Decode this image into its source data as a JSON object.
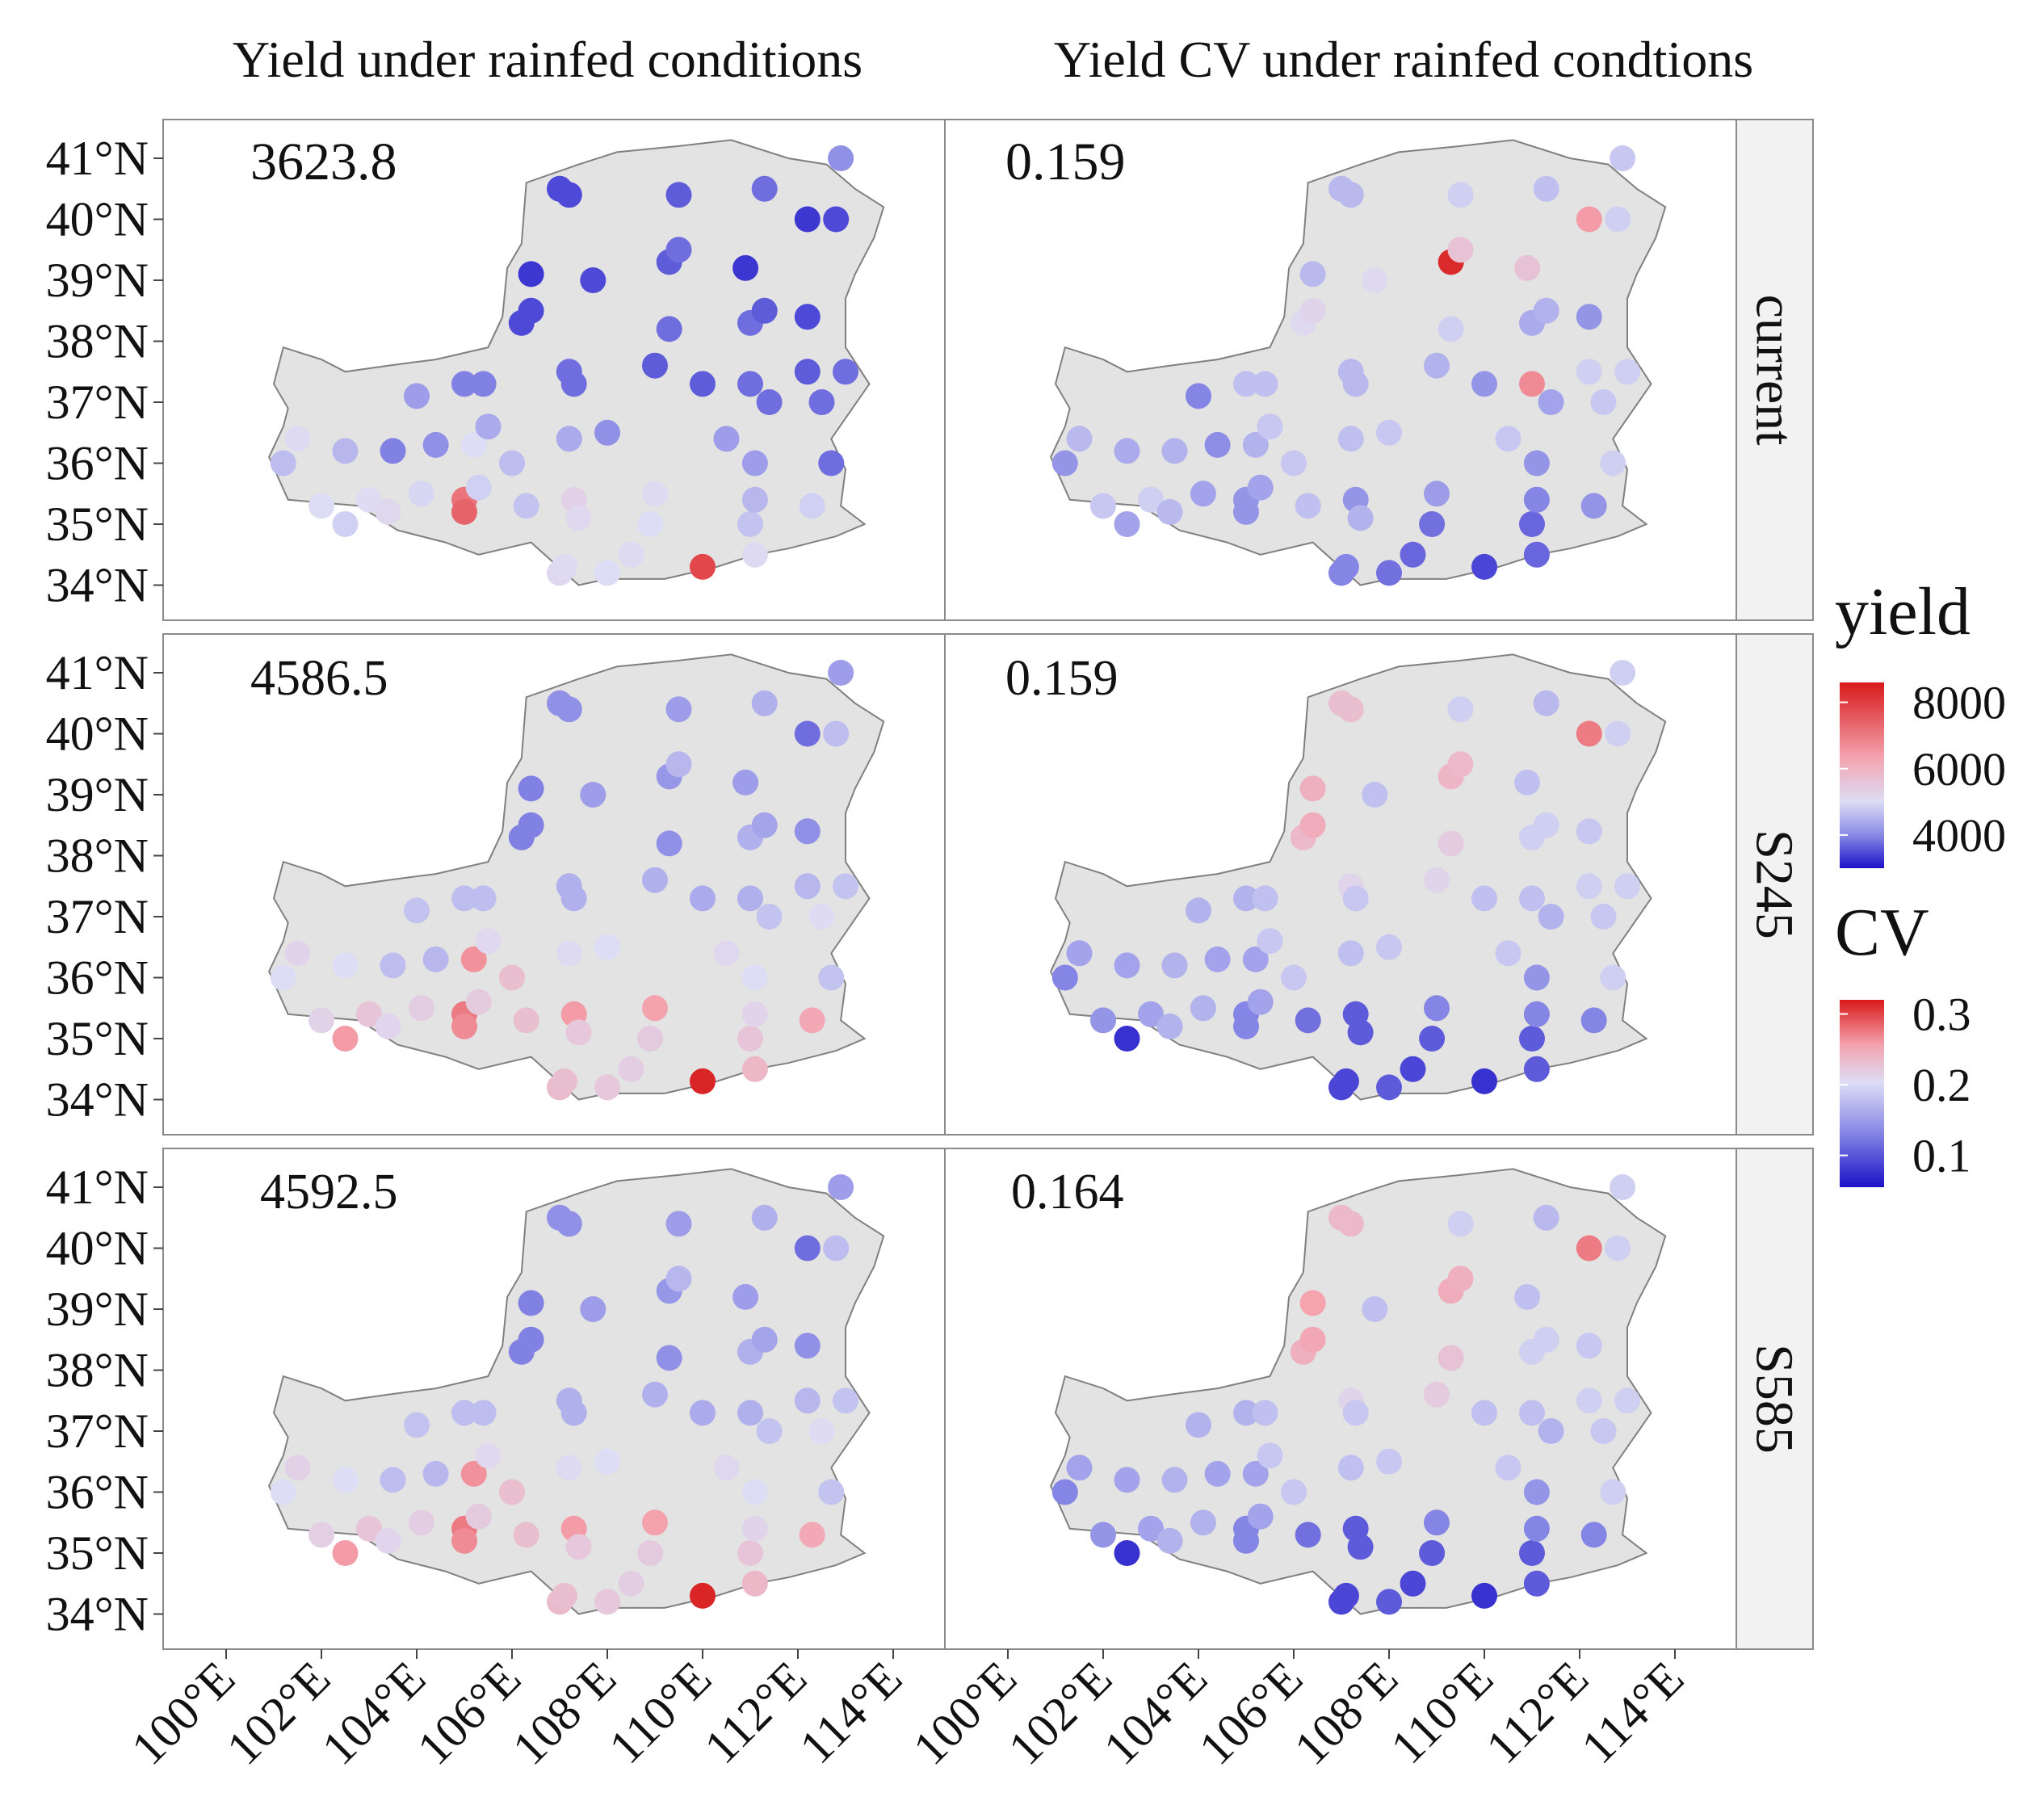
{
  "figure": {
    "col_titles": [
      "Yield under rainfed conditions",
      "Yield CV under rainfed condtions"
    ],
    "row_labels": [
      "current",
      "S245",
      "S585"
    ],
    "panel_values": [
      [
        "3623.8",
        "0.159"
      ],
      [
        "4586.5",
        "0.159"
      ],
      [
        "4592.5",
        "0.164"
      ]
    ],
    "lat_labels": [
      "41°N",
      "40°N",
      "39°N",
      "38°N",
      "37°N",
      "36°N",
      "35°N",
      "34°N"
    ],
    "lat_values": [
      41,
      40,
      39,
      38,
      37,
      36,
      35,
      34
    ],
    "lon_labels": [
      "100°E",
      "102°E",
      "104°E",
      "106°E",
      "108°E",
      "110°E",
      "112°E",
      "114°E"
    ],
    "lon_values": [
      100,
      102,
      104,
      106,
      108,
      110,
      112,
      114
    ],
    "legend": {
      "yield": {
        "title": "yield",
        "ticks": [
          "8000",
          "6000",
          "4000"
        ],
        "tick_values": [
          8000,
          6000,
          4000
        ],
        "min": 3000,
        "max": 8600
      },
      "cv": {
        "title": "CV",
        "ticks": [
          "0.3",
          "0.2",
          "0.1"
        ],
        "tick_values": [
          0.3,
          0.2,
          0.1
        ],
        "min": 0.055,
        "max": 0.32
      }
    },
    "colors": {
      "low": "#1a12c8",
      "mid": "#ddddf5",
      "high": "#d81a1a",
      "region_fill": "#e3e3e3",
      "region_stroke": "#808080",
      "strip_fill": "#f2f2f2"
    }
  },
  "map_data": {
    "region_outline": [
      [
        101.2,
        36.6
      ],
      [
        100.9,
        36.1
      ],
      [
        101.3,
        35.4
      ],
      [
        102.8,
        35.3
      ],
      [
        103.6,
        34.9
      ],
      [
        104.6,
        34.7
      ],
      [
        105.3,
        34.5
      ],
      [
        106.4,
        34.7
      ],
      [
        107.4,
        34.0
      ],
      [
        108.0,
        34.1
      ],
      [
        109.2,
        34.1
      ],
      [
        110.3,
        34.3
      ],
      [
        111.1,
        34.5
      ],
      [
        111.8,
        34.6
      ],
      [
        112.8,
        34.8
      ],
      [
        113.4,
        35.0
      ],
      [
        112.9,
        35.3
      ],
      [
        113.0,
        35.9
      ],
      [
        112.7,
        36.4
      ],
      [
        113.5,
        37.3
      ],
      [
        113.0,
        37.9
      ],
      [
        113.0,
        38.7
      ],
      [
        113.2,
        39.1
      ],
      [
        113.6,
        39.7
      ],
      [
        113.8,
        40.2
      ],
      [
        113.2,
        40.5
      ],
      [
        112.6,
        40.9
      ],
      [
        111.8,
        41.0
      ],
      [
        110.6,
        41.3
      ],
      [
        109.5,
        41.2
      ],
      [
        108.2,
        41.1
      ],
      [
        107.4,
        40.9
      ],
      [
        106.3,
        40.6
      ],
      [
        106.2,
        39.6
      ],
      [
        105.9,
        39.2
      ],
      [
        105.8,
        38.4
      ],
      [
        105.5,
        37.9
      ],
      [
        104.4,
        37.7
      ],
      [
        103.4,
        37.6
      ],
      [
        102.5,
        37.5
      ],
      [
        102.0,
        37.7
      ],
      [
        101.2,
        37.9
      ],
      [
        101.0,
        37.3
      ],
      [
        101.3,
        36.9
      ]
    ],
    "stations": [
      {
        "lon": 101.5,
        "lat": 36.4,
        "y": [
          4400,
          4600,
          4700
        ],
        "cv": [
          0.145,
          0.13,
          0.13
        ]
      },
      {
        "lon": 101.2,
        "lat": 36.0,
        "y": [
          4050,
          4300,
          4300
        ],
        "cv": [
          0.12,
          0.11,
          0.11
        ]
      },
      {
        "lon": 102.0,
        "lat": 35.3,
        "y": [
          4300,
          4650,
          4750
        ],
        "cv": [
          0.155,
          0.12,
          0.12
        ]
      },
      {
        "lon": 102.5,
        "lat": 36.2,
        "y": [
          4000,
          4300,
          4300
        ],
        "cv": [
          0.135,
          0.13,
          0.13
        ]
      },
      {
        "lon": 102.5,
        "lat": 35.0,
        "y": [
          4200,
          6300,
          6300
        ],
        "cv": [
          0.13,
          0.07,
          0.07
        ]
      },
      {
        "lon": 103.0,
        "lat": 35.4,
        "y": [
          4350,
          5100,
          5100
        ],
        "cv": [
          0.16,
          0.13,
          0.13
        ]
      },
      {
        "lon": 103.5,
        "lat": 36.2,
        "y": [
          3600,
          4050,
          4050
        ],
        "cv": [
          0.14,
          0.14,
          0.14
        ]
      },
      {
        "lon": 103.4,
        "lat": 35.2,
        "y": [
          4500,
          4550,
          4550
        ],
        "cv": [
          0.145,
          0.14,
          0.14
        ]
      },
      {
        "lon": 104.0,
        "lat": 37.1,
        "y": [
          3800,
          4100,
          4100
        ],
        "cv": [
          0.11,
          0.14,
          0.14
        ]
      },
      {
        "lon": 104.1,
        "lat": 35.5,
        "y": [
          4250,
          4800,
          4800
        ],
        "cv": [
          0.13,
          0.14,
          0.14
        ]
      },
      {
        "lon": 104.4,
        "lat": 36.3,
        "y": [
          3700,
          4000,
          4000
        ],
        "cv": [
          0.115,
          0.13,
          0.13
        ]
      },
      {
        "lon": 105.0,
        "lat": 37.3,
        "y": [
          3600,
          4050,
          4050
        ],
        "cv": [
          0.15,
          0.14,
          0.14
        ]
      },
      {
        "lon": 105.4,
        "lat": 37.3,
        "y": [
          3600,
          4050,
          4050
        ],
        "cv": [
          0.15,
          0.15,
          0.15
        ]
      },
      {
        "lon": 105.0,
        "lat": 35.4,
        "y": [
          7000,
          6900,
          6900
        ],
        "cv": [
          0.12,
          0.11,
          0.11
        ]
      },
      {
        "lon": 105.0,
        "lat": 35.2,
        "y": [
          7300,
          6600,
          6600
        ],
        "cv": [
          0.12,
          0.11,
          0.11
        ]
      },
      {
        "lon": 105.3,
        "lat": 35.6,
        "y": [
          4200,
          4900,
          4900
        ],
        "cv": [
          0.13,
          0.13,
          0.13
        ]
      },
      {
        "lon": 105.2,
        "lat": 36.3,
        "y": [
          4300,
          6500,
          6500
        ],
        "cv": [
          0.14,
          0.13,
          0.13
        ]
      },
      {
        "lon": 105.5,
        "lat": 36.6,
        "y": [
          3900,
          4450,
          4450
        ],
        "cv": [
          0.155,
          0.155,
          0.155
        ]
      },
      {
        "lon": 106.0,
        "lat": 36.0,
        "y": [
          4050,
          5300,
          5300
        ],
        "cv": [
          0.155,
          0.155,
          0.155
        ]
      },
      {
        "lon": 106.3,
        "lat": 35.3,
        "y": [
          4100,
          5300,
          5300
        ],
        "cv": [
          0.15,
          0.1,
          0.1
        ]
      },
      {
        "lon": 106.2,
        "lat": 38.3,
        "y": [
          3300,
          3600,
          3600
        ],
        "cv": [
          0.175,
          0.21,
          0.22
        ]
      },
      {
        "lon": 106.4,
        "lat": 38.5,
        "y": [
          3300,
          3600,
          3600
        ],
        "cv": [
          0.18,
          0.225,
          0.23
        ]
      },
      {
        "lon": 106.4,
        "lat": 39.1,
        "y": [
          3200,
          3600,
          3600
        ],
        "cv": [
          0.145,
          0.22,
          0.235
        ]
      },
      {
        "lon": 107.0,
        "lat": 40.5,
        "y": [
          3300,
          3700,
          3700
        ],
        "cv": [
          0.145,
          0.205,
          0.21
        ]
      },
      {
        "lon": 107.2,
        "lat": 40.4,
        "y": [
          3300,
          3700,
          3700
        ],
        "cv": [
          0.145,
          0.205,
          0.21
        ]
      },
      {
        "lon": 107.7,
        "lat": 39.0,
        "y": [
          3300,
          3800,
          3800
        ],
        "cv": [
          0.175,
          0.15,
          0.15
        ]
      },
      {
        "lon": 107.2,
        "lat": 37.5,
        "y": [
          3500,
          3950,
          3950
        ],
        "cv": [
          0.145,
          0.18,
          0.18
        ]
      },
      {
        "lon": 107.3,
        "lat": 37.3,
        "y": [
          3500,
          3950,
          3950
        ],
        "cv": [
          0.145,
          0.155,
          0.155
        ]
      },
      {
        "lon": 107.2,
        "lat": 36.4,
        "y": [
          3900,
          4400,
          4400
        ],
        "cv": [
          0.15,
          0.15,
          0.15
        ]
      },
      {
        "lon": 107.3,
        "lat": 35.4,
        "y": [
          4700,
          6300,
          6300
        ],
        "cv": [
          0.12,
          0.09,
          0.09
        ]
      },
      {
        "lon": 107.4,
        "lat": 35.1,
        "y": [
          4450,
          5000,
          5000
        ],
        "cv": [
          0.14,
          0.09,
          0.09
        ]
      },
      {
        "lon": 107.0,
        "lat": 34.2,
        "y": [
          4500,
          5400,
          5400
        ],
        "cv": [
          0.11,
          0.08,
          0.08
        ]
      },
      {
        "lon": 107.1,
        "lat": 34.3,
        "y": [
          4400,
          5300,
          5300
        ],
        "cv": [
          0.11,
          0.08,
          0.08
        ]
      },
      {
        "lon": 108.0,
        "lat": 36.5,
        "y": [
          3700,
          4300,
          4300
        ],
        "cv": [
          0.155,
          0.155,
          0.155
        ]
      },
      {
        "lon": 108.0,
        "lat": 34.2,
        "y": [
          4300,
          5000,
          5000
        ],
        "cv": [
          0.1,
          0.09,
          0.09
        ]
      },
      {
        "lon": 108.5,
        "lat": 34.5,
        "y": [
          4400,
          4800,
          4800
        ],
        "cv": [
          0.095,
          0.08,
          0.08
        ]
      },
      {
        "lon": 108.9,
        "lat": 35.0,
        "y": [
          4300,
          4900,
          4900
        ],
        "cv": [
          0.1,
          0.09,
          0.09
        ]
      },
      {
        "lon": 109.0,
        "lat": 35.5,
        "y": [
          4400,
          6200,
          6200
        ],
        "cv": [
          0.125,
          0.11,
          0.11
        ]
      },
      {
        "lon": 109.0,
        "lat": 37.6,
        "y": [
          3400,
          3950,
          3950
        ],
        "cv": [
          0.14,
          0.18,
          0.19
        ]
      },
      {
        "lon": 109.3,
        "lat": 38.2,
        "y": [
          3500,
          3700,
          3700
        ],
        "cv": [
          0.16,
          0.19,
          0.2
        ]
      },
      {
        "lon": 109.3,
        "lat": 39.3,
        "y": [
          3400,
          3750,
          3750
        ],
        "cv": [
          0.31,
          0.215,
          0.225
        ]
      },
      {
        "lon": 109.5,
        "lat": 39.5,
        "y": [
          3500,
          4000,
          4000
        ],
        "cv": [
          0.2,
          0.21,
          0.22
        ]
      },
      {
        "lon": 109.5,
        "lat": 40.4,
        "y": [
          3400,
          3800,
          3800
        ],
        "cv": [
          0.16,
          0.16,
          0.16
        ]
      },
      {
        "lon": 110.0,
        "lat": 37.3,
        "y": [
          3400,
          3900,
          3900
        ],
        "cv": [
          0.12,
          0.15,
          0.15
        ]
      },
      {
        "lon": 110.0,
        "lat": 34.3,
        "y": [
          7800,
          8400,
          8400
        ],
        "cv": [
          0.08,
          0.07,
          0.07
        ]
      },
      {
        "lon": 110.5,
        "lat": 36.4,
        "y": [
          3800,
          4500,
          4500
        ],
        "cv": [
          0.155,
          0.155,
          0.155
        ]
      },
      {
        "lon": 110.9,
        "lat": 39.2,
        "y": [
          3200,
          3800,
          3800
        ],
        "cv": [
          0.2,
          0.15,
          0.15
        ]
      },
      {
        "lon": 111.0,
        "lat": 37.3,
        "y": [
          3500,
          3950,
          3950
        ],
        "cv": [
          0.25,
          0.15,
          0.15
        ]
      },
      {
        "lon": 111.0,
        "lat": 38.3,
        "y": [
          3500,
          3950,
          3950
        ],
        "cv": [
          0.135,
          0.16,
          0.16
        ]
      },
      {
        "lon": 111.0,
        "lat": 35.0,
        "y": [
          4100,
          5100,
          5100
        ],
        "cv": [
          0.095,
          0.09,
          0.09
        ]
      },
      {
        "lon": 111.1,
        "lat": 35.4,
        "y": [
          4000,
          4600,
          4600
        ],
        "cv": [
          0.11,
          0.11,
          0.11
        ]
      },
      {
        "lon": 111.1,
        "lat": 36.0,
        "y": [
          3800,
          4300,
          4300
        ],
        "cv": [
          0.12,
          0.12,
          0.12
        ]
      },
      {
        "lon": 111.1,
        "lat": 34.5,
        "y": [
          4400,
          5500,
          5500
        ],
        "cv": [
          0.095,
          0.09,
          0.09
        ]
      },
      {
        "lon": 111.3,
        "lat": 38.5,
        "y": [
          3400,
          3850,
          3850
        ],
        "cv": [
          0.14,
          0.16,
          0.16
        ]
      },
      {
        "lon": 111.3,
        "lat": 40.5,
        "y": [
          3500,
          3950,
          3950
        ],
        "cv": [
          0.15,
          0.145,
          0.145
        ]
      },
      {
        "lon": 111.4,
        "lat": 37.0,
        "y": [
          3500,
          4100,
          4100
        ],
        "cv": [
          0.13,
          0.14,
          0.14
        ]
      },
      {
        "lon": 112.2,
        "lat": 40.0,
        "y": [
          3200,
          3500,
          3500
        ],
        "cv": [
          0.24,
          0.26,
          0.26
        ]
      },
      {
        "lon": 112.2,
        "lat": 38.4,
        "y": [
          3300,
          3700,
          3700
        ],
        "cv": [
          0.12,
          0.155,
          0.155
        ]
      },
      {
        "lon": 112.2,
        "lat": 37.5,
        "y": [
          3400,
          4000,
          4000
        ],
        "cv": [
          0.16,
          0.16,
          0.16
        ]
      },
      {
        "lon": 112.3,
        "lat": 35.3,
        "y": [
          4200,
          6000,
          6000
        ],
        "cv": [
          0.12,
          0.11,
          0.11
        ]
      },
      {
        "lon": 112.5,
        "lat": 37.0,
        "y": [
          3500,
          4350,
          4350
        ],
        "cv": [
          0.155,
          0.155,
          0.155
        ]
      },
      {
        "lon": 112.8,
        "lat": 40.0,
        "y": [
          3300,
          4050,
          4050
        ],
        "cv": [
          0.16,
          0.16,
          0.16
        ]
      },
      {
        "lon": 113.0,
        "lat": 37.5,
        "y": [
          3500,
          4100,
          4100
        ],
        "cv": [
          0.16,
          0.16,
          0.16
        ]
      },
      {
        "lon": 112.7,
        "lat": 36.0,
        "y": [
          3500,
          4100,
          4100
        ],
        "cv": [
          0.16,
          0.16,
          0.16
        ]
      },
      {
        "lon": 112.9,
        "lat": 41.0,
        "y": [
          3700,
          3800,
          3800
        ],
        "cv": [
          0.155,
          0.16,
          0.16
        ]
      }
    ]
  }
}
